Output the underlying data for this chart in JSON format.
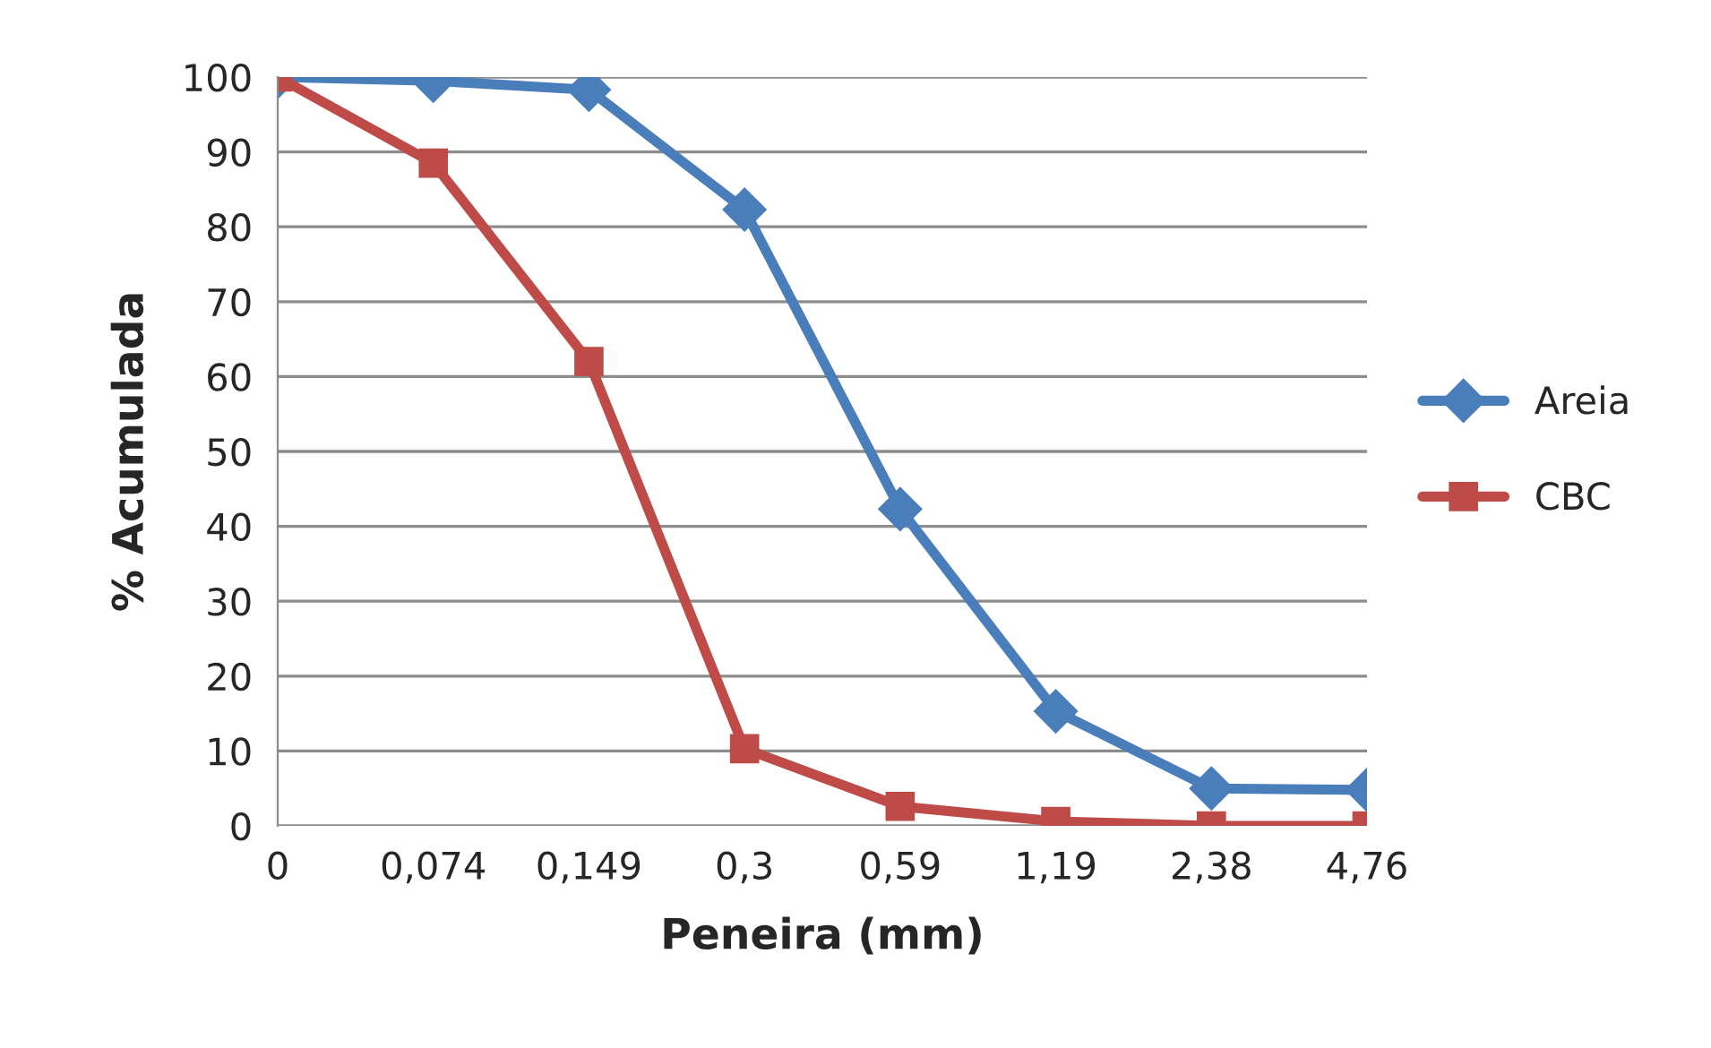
{
  "chart_data": {
    "type": "line",
    "xlabel": "Peneira (mm)",
    "ylabel": "% Acumulada",
    "categories": [
      "0",
      "0,074",
      "0,149",
      "0,3",
      "0,59",
      "1,19",
      "2,38",
      "4,76"
    ],
    "series": [
      {
        "name": "Areia",
        "color": "#4a7ebb",
        "marker": "diamond",
        "values": [
          100,
          99.5,
          98.3,
          82.3,
          42.3,
          15.3,
          5.0,
          4.8
        ]
      },
      {
        "name": "CBC",
        "color": "#be4b48",
        "marker": "square",
        "values": [
          100,
          88.5,
          62,
          10.3,
          2.6,
          0.6,
          0,
          0
        ]
      }
    ],
    "ylim": [
      0,
      100
    ],
    "yticks": [
      0,
      10,
      20,
      30,
      40,
      50,
      60,
      70,
      80,
      90,
      100
    ],
    "grid": "y",
    "legend": "right",
    "line_style": "solid"
  }
}
